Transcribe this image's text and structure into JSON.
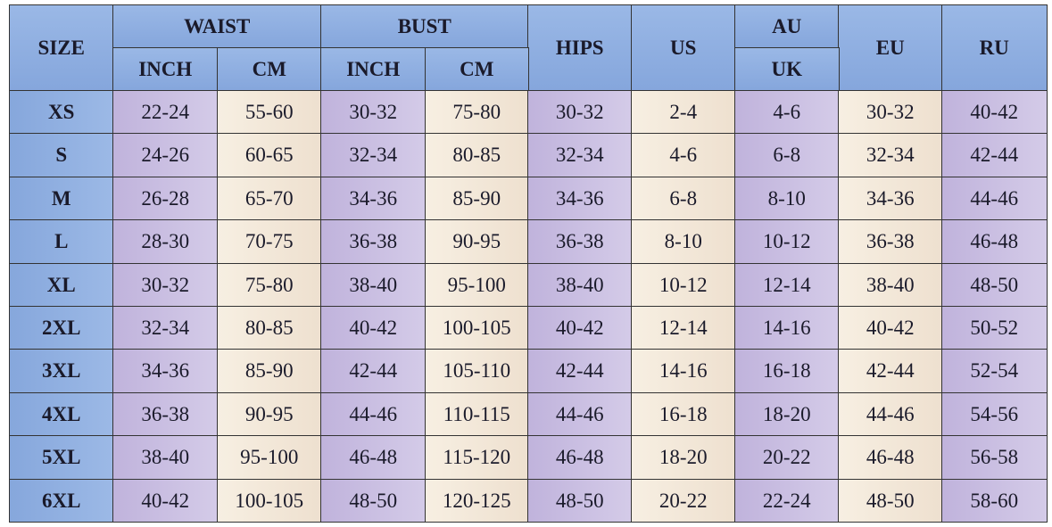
{
  "table": {
    "header_top": [
      "SIZE",
      "WAIST",
      "BUST",
      "HIPS",
      "US",
      "AU",
      "EU",
      "RU"
    ],
    "header_sub": [
      "INCH",
      "CM",
      "INCH",
      "CM",
      "UK"
    ],
    "rows": [
      [
        "XS",
        "22-24",
        "55-60",
        "30-32",
        "75-80",
        "30-32",
        "2-4",
        "4-6",
        "30-32",
        "40-42"
      ],
      [
        "S",
        "24-26",
        "60-65",
        "32-34",
        "80-85",
        "32-34",
        "4-6",
        "6-8",
        "32-34",
        "42-44"
      ],
      [
        "M",
        "26-28",
        "65-70",
        "34-36",
        "85-90",
        "34-36",
        "6-8",
        "8-10",
        "34-36",
        "44-46"
      ],
      [
        "L",
        "28-30",
        "70-75",
        "36-38",
        "90-95",
        "36-38",
        "8-10",
        "10-12",
        "36-38",
        "46-48"
      ],
      [
        "XL",
        "30-32",
        "75-80",
        "38-40",
        "95-100",
        "38-40",
        "10-12",
        "12-14",
        "38-40",
        "48-50"
      ],
      [
        "2XL",
        "32-34",
        "80-85",
        "40-42",
        "100-105",
        "40-42",
        "12-14",
        "14-16",
        "40-42",
        "50-52"
      ],
      [
        "3XL",
        "34-36",
        "85-90",
        "42-44",
        "105-110",
        "42-44",
        "14-16",
        "16-18",
        "42-44",
        "52-54"
      ],
      [
        "4XL",
        "36-38",
        "90-95",
        "44-46",
        "110-115",
        "44-46",
        "16-18",
        "18-20",
        "44-46",
        "54-56"
      ],
      [
        "5XL",
        "38-40",
        "95-100",
        "46-48",
        "115-120",
        "46-48",
        "18-20",
        "20-22",
        "46-48",
        "56-58"
      ],
      [
        "6XL",
        "40-42",
        "100-105",
        "48-50",
        "120-125",
        "48-50",
        "20-22",
        "22-24",
        "48-50",
        "58-60"
      ]
    ]
  }
}
